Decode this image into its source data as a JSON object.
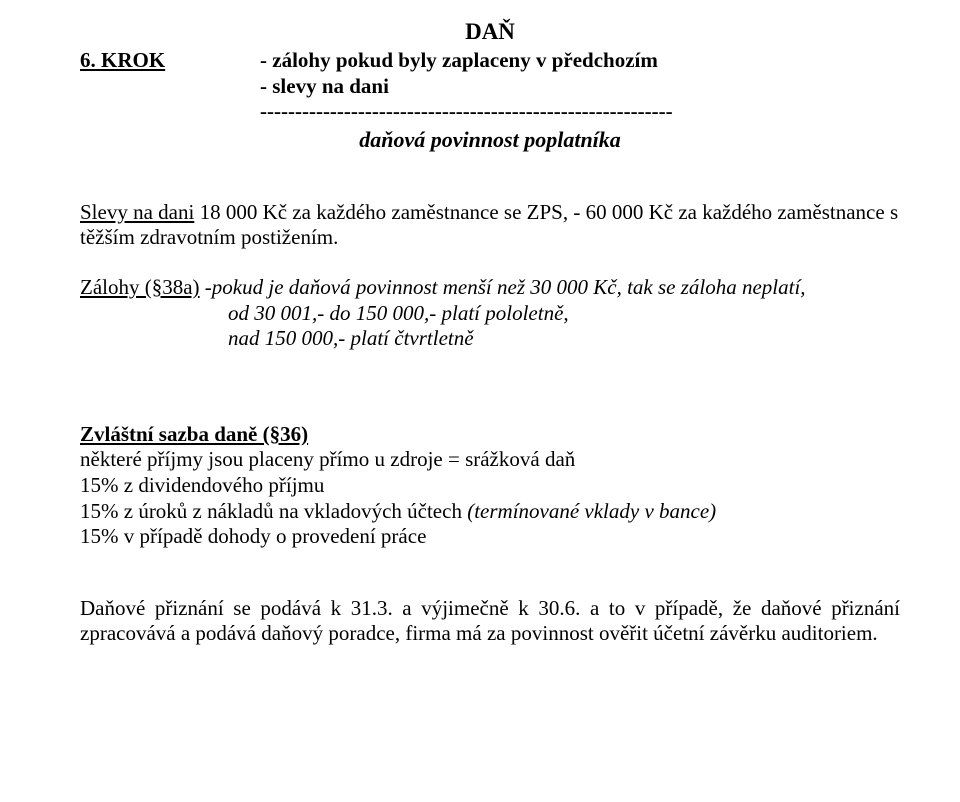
{
  "title_top": "DAŇ",
  "krok_label": "6. KROK",
  "krok_line1": "- zálohy pokud byly zaplaceny v předchozím",
  "slevy_line": "- slevy na dani",
  "dashes": "-----------------------------------------------------------",
  "danova": "daňová povinnost poplatníka",
  "slevy_para_lead": "Slevy na dani",
  "slevy_para_rest": " 18 000 Kč za každého zaměstnance se ZPS, - 60 000 Kč za každého zaměstnance s těžším zdravotním postižením.",
  "zalohy_lead": "Zálohy (§38a)",
  "zalohy_rest": " -pokud je daňová povinnost menší než 30 000 Kč, tak se záloha neplatí,",
  "zalohy_sub1": "od 30 001,-  do 150 000,-  platí pololetně,",
  "zalohy_sub2": "nad 150 000,- platí čtvrtletně",
  "zvlastni_head": "Zvláštní sazba daně (§36)",
  "zvlastni_l1": "některé příjmy jsou placeny přímo u zdroje = srážková daň",
  "zvlastni_l2": "15% z dividendového příjmu",
  "zvlastni_l3a": "15% z úroků z nákladů na vkladových účtech ",
  "zvlastni_l3b": "(termínované vklady v bance)",
  "zvlastni_l4": "15% v případě dohody o provedení práce",
  "priznani": "Daňové přiznání se podává k 31.3. a výjimečně k 30.6. a to v případě, že daňové přiznání zpracovává a podává daňový poradce, firma má za povinnost ověřit účetní závěrku auditoriem."
}
